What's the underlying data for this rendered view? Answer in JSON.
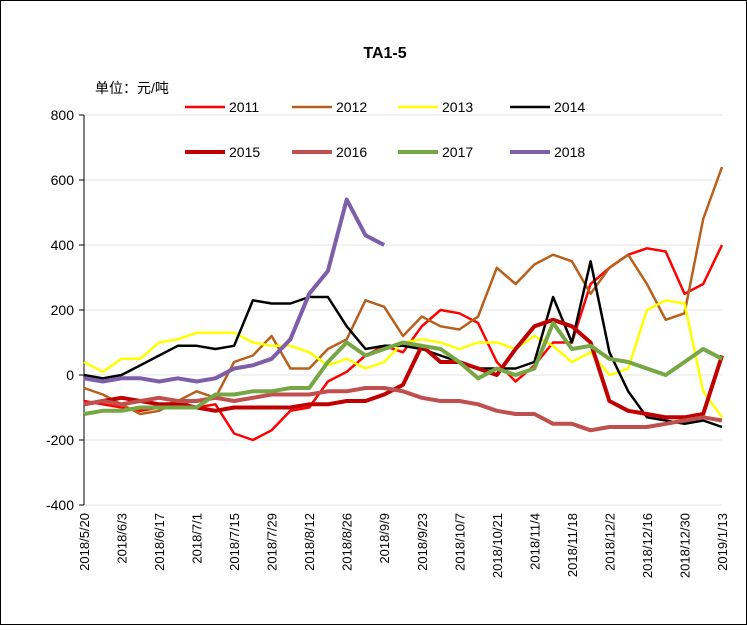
{
  "chart_data": {
    "type": "line",
    "title": "TA1-5",
    "unit_label": "单位：元/吨",
    "categories": [
      "2018/5/20",
      null,
      "2018/6/3",
      null,
      "2018/6/17",
      null,
      "2018/7/1",
      null,
      "2018/7/15",
      null,
      "2018/7/29",
      null,
      "2018/8/12",
      null,
      "2018/8/26",
      null,
      "2018/9/9",
      null,
      "2018/9/23",
      null,
      "2018/10/7",
      null,
      "2018/10/21",
      null,
      "2018/11/4",
      null,
      "2018/11/18",
      null,
      "2018/12/2",
      null,
      "2018/12/16",
      null,
      "2018/12/30",
      null,
      "2019/1/13"
    ],
    "ylim": [
      -400,
      800
    ],
    "yticks": [
      -400,
      -200,
      0,
      200,
      400,
      600,
      800
    ],
    "grid": true,
    "series": [
      {
        "name": "2011",
        "color": "#ff0000",
        "width": 2.5,
        "values": [
          -80,
          -90,
          -100,
          -110,
          -100,
          -80,
          -100,
          -90,
          -180,
          -200,
          -170,
          -110,
          -100,
          -20,
          10,
          60,
          90,
          70,
          150,
          200,
          190,
          160,
          40,
          -20,
          30,
          100,
          100,
          280,
          330,
          370,
          390,
          380,
          250,
          280,
          400
        ]
      },
      {
        "name": "2012",
        "color": "#b8601b",
        "width": 2.5,
        "values": [
          -40,
          -60,
          -90,
          -120,
          -110,
          -80,
          -50,
          -70,
          40,
          60,
          120,
          20,
          20,
          80,
          110,
          230,
          210,
          120,
          180,
          150,
          140,
          180,
          330,
          280,
          340,
          370,
          350,
          250,
          330,
          370,
          280,
          170,
          190,
          480,
          640
        ]
      },
      {
        "name": "2013",
        "color": "#ffff00",
        "width": 2.5,
        "values": [
          40,
          10,
          50,
          50,
          100,
          110,
          130,
          130,
          130,
          100,
          90,
          90,
          70,
          30,
          50,
          20,
          40,
          100,
          110,
          100,
          80,
          100,
          100,
          80,
          120,
          90,
          40,
          70,
          0,
          20,
          200,
          230,
          220,
          -50,
          -130
        ]
      },
      {
        "name": "2014",
        "color": "#000000",
        "width": 2.5,
        "values": [
          0,
          -10,
          0,
          30,
          60,
          90,
          90,
          80,
          90,
          230,
          220,
          220,
          240,
          240,
          150,
          80,
          90,
          90,
          80,
          60,
          40,
          20,
          20,
          20,
          40,
          240,
          100,
          350,
          70,
          -50,
          -130,
          -140,
          -150,
          -140,
          -160
        ]
      },
      {
        "name": "2015",
        "color": "#c00000",
        "width": 4,
        "values": [
          -90,
          -80,
          -70,
          -80,
          -90,
          -90,
          -100,
          -110,
          -100,
          -100,
          -100,
          -100,
          -90,
          -90,
          -80,
          -80,
          -60,
          -30,
          90,
          40,
          40,
          20,
          0,
          80,
          150,
          170,
          150,
          100,
          -80,
          -110,
          -120,
          -130,
          -130,
          -120,
          60
        ]
      },
      {
        "name": "2016",
        "color": "#c0504d",
        "width": 4,
        "values": [
          -90,
          -80,
          -90,
          -80,
          -70,
          -80,
          -80,
          -70,
          -80,
          -70,
          -60,
          -60,
          -60,
          -50,
          -50,
          -40,
          -40,
          -50,
          -70,
          -80,
          -80,
          -90,
          -110,
          -120,
          -120,
          -150,
          -150,
          -170,
          -160,
          -160,
          -160,
          -150,
          -140,
          -130,
          -140
        ]
      },
      {
        "name": "2017",
        "color": "#77a645",
        "width": 4,
        "values": [
          -120,
          -110,
          -110,
          -100,
          -100,
          -100,
          -100,
          -60,
          -60,
          -50,
          -50,
          -40,
          -40,
          40,
          100,
          60,
          80,
          100,
          90,
          80,
          40,
          -10,
          20,
          0,
          20,
          160,
          80,
          90,
          50,
          40,
          20,
          0,
          40,
          80,
          50
        ]
      },
      {
        "name": "2018",
        "color": "#7e5ea8",
        "width": 4,
        "values": [
          -10,
          -20,
          -10,
          -10,
          -20,
          -10,
          -20,
          -10,
          20,
          30,
          50,
          110,
          250,
          320,
          540,
          430,
          400,
          null,
          null,
          null,
          null,
          null,
          null,
          null,
          null,
          null,
          null,
          null,
          null,
          null,
          null,
          null,
          null,
          null,
          null
        ]
      }
    ]
  }
}
